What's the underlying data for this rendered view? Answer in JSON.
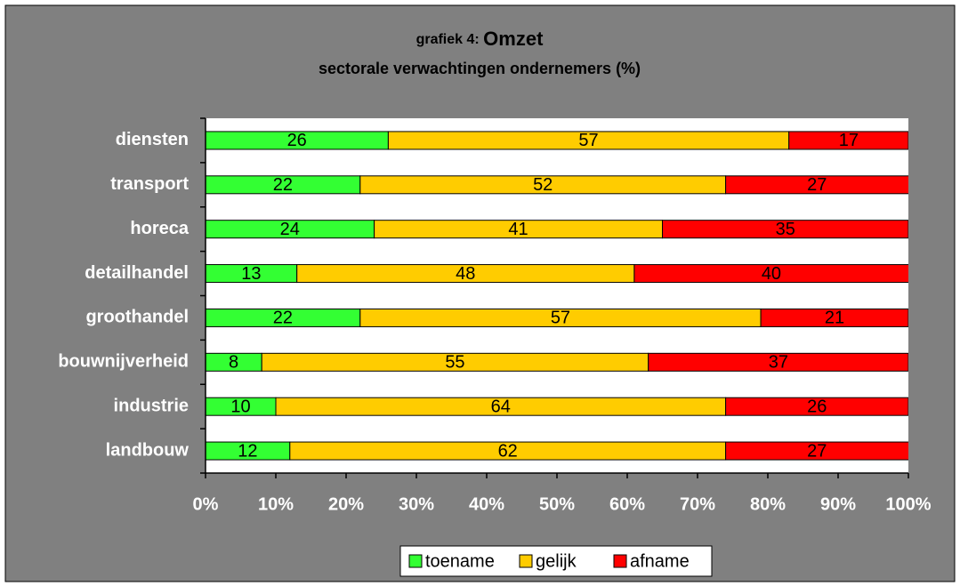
{
  "chart_data": {
    "type": "stacked_bar_horizontal",
    "title_label": "grafiek 4:",
    "title": "Omzet",
    "subtitle": "sectorale verwachtingen ondernemers (%)",
    "categories": [
      "diensten",
      "transport",
      "horeca",
      "detailhandel",
      "groothandel",
      "bouwnijverheid",
      "industrie",
      "landbouw"
    ],
    "series": [
      {
        "name": "toename",
        "color": "#33ff33",
        "values": [
          26,
          22,
          24,
          13,
          22,
          8,
          10,
          12
        ]
      },
      {
        "name": "gelijk",
        "color": "#ffcc00",
        "values": [
          57,
          52,
          41,
          48,
          57,
          55,
          64,
          62
        ]
      },
      {
        "name": "afname",
        "color": "#ff0000",
        "values": [
          17,
          27,
          35,
          40,
          21,
          37,
          26,
          27
        ]
      }
    ],
    "xlim": [
      0,
      100
    ],
    "xticks": [
      {
        "value": 0,
        "label": "0%"
      },
      {
        "value": 10,
        "label": "10%"
      },
      {
        "value": 20,
        "label": "20%"
      },
      {
        "value": 30,
        "label": "30%"
      },
      {
        "value": 40,
        "label": "40%"
      },
      {
        "value": 50,
        "label": "50%"
      },
      {
        "value": 60,
        "label": "60%"
      },
      {
        "value": 70,
        "label": "70%"
      },
      {
        "value": 80,
        "label": "80%"
      },
      {
        "value": 90,
        "label": "90%"
      },
      {
        "value": 100,
        "label": "100%"
      }
    ],
    "legend": "bottom"
  }
}
